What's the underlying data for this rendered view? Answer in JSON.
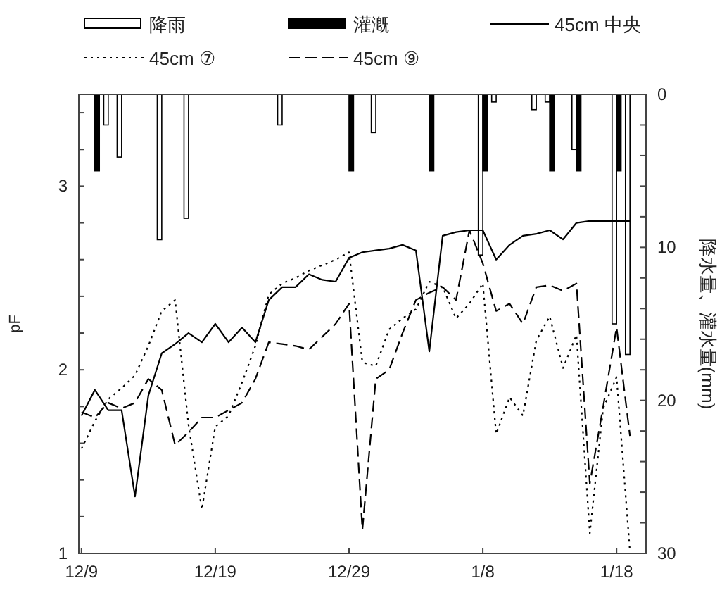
{
  "chart_data": {
    "type": "line",
    "ylabel": "pF",
    "y2label": "降水量、灌水量(mm)",
    "categories": [
      "12/9",
      null,
      null,
      null,
      null,
      null,
      null,
      null,
      null,
      null,
      "12/19",
      null,
      null,
      null,
      null,
      null,
      null,
      null,
      null,
      null,
      "12/29",
      null,
      null,
      null,
      null,
      null,
      null,
      null,
      null,
      null,
      "1/8",
      null,
      null,
      null,
      null,
      null,
      null,
      null,
      null,
      null,
      "1/18",
      null
    ],
    "series": [
      {
        "name": "降雨",
        "type": "bar",
        "axis": "y2",
        "color": "#ffffff",
        "values": [
          null,
          null,
          2.0,
          4.1,
          null,
          null,
          9.5,
          null,
          8.1,
          null,
          null,
          null,
          null,
          null,
          null,
          2.0,
          null,
          null,
          null,
          null,
          null,
          null,
          2.5,
          null,
          null,
          null,
          null,
          null,
          null,
          null,
          10.5,
          0.5,
          null,
          null,
          1.0,
          0.5,
          null,
          3.6,
          null,
          null,
          15.0,
          17.0
        ]
      },
      {
        "name": "灌漑",
        "type": "bar",
        "axis": "y2",
        "color": "#000000",
        "values": [
          null,
          5,
          null,
          null,
          null,
          null,
          null,
          null,
          null,
          null,
          null,
          null,
          null,
          null,
          null,
          null,
          null,
          null,
          null,
          null,
          5,
          null,
          null,
          null,
          null,
          null,
          5,
          null,
          null,
          null,
          5,
          null,
          null,
          null,
          null,
          5,
          null,
          5,
          null,
          null,
          5,
          null
        ]
      },
      {
        "name": "45cm 中央",
        "color": "#000000",
        "line_style": "solid",
        "values": [
          1.75,
          1.89,
          1.78,
          1.78,
          1.31,
          1.86,
          2.09,
          2.14,
          2.2,
          2.15,
          2.25,
          2.15,
          2.23,
          2.15,
          2.38,
          2.45,
          2.45,
          2.52,
          2.49,
          2.48,
          2.61,
          2.64,
          2.65,
          2.66,
          2.68,
          2.65,
          2.1,
          2.73,
          2.75,
          2.76,
          2.76,
          2.6,
          2.68,
          2.73,
          2.74,
          2.76,
          2.71,
          2.8,
          2.81,
          2.81,
          2.81,
          2.81
        ]
      },
      {
        "name": "45cm ⑦",
        "color": "#000000",
        "line_style": "dotted",
        "values": [
          1.57,
          1.72,
          1.84,
          1.9,
          1.97,
          2.13,
          2.32,
          2.38,
          1.7,
          1.24,
          1.69,
          1.75,
          1.93,
          2.13,
          2.41,
          2.47,
          2.5,
          2.54,
          2.57,
          2.6,
          2.64,
          2.04,
          2.02,
          2.22,
          2.28,
          2.33,
          2.48,
          2.45,
          2.28,
          2.36,
          2.47,
          1.65,
          1.85,
          1.75,
          2.16,
          2.29,
          2.01,
          2.19,
          1.11,
          1.79,
          1.96,
          1.01
        ]
      },
      {
        "name": "45cm ⑨",
        "color": "#000000",
        "line_style": "dashed",
        "values": [
          1.77,
          1.74,
          1.82,
          1.79,
          1.82,
          1.95,
          1.89,
          1.59,
          1.66,
          1.74,
          1.74,
          1.78,
          1.82,
          1.95,
          2.15,
          2.14,
          2.13,
          2.11,
          2.18,
          2.25,
          2.36,
          1.13,
          1.95,
          2.0,
          2.2,
          2.38,
          2.42,
          2.45,
          2.38,
          2.76,
          2.58,
          2.32,
          2.36,
          2.25,
          2.45,
          2.46,
          2.43,
          2.47,
          1.38,
          1.8,
          2.23,
          1.64
        ]
      }
    ],
    "ylim": [
      1,
      3.5
    ],
    "yticks": [
      1,
      {
        "value": 1.2,
        "label": null
      },
      {
        "value": 1.4,
        "label": null
      },
      {
        "value": 1.6,
        "label": null
      },
      {
        "value": 1.8,
        "label": null
      },
      2,
      {
        "value": 2.2,
        "label": null
      },
      {
        "value": 2.4,
        "label": null
      },
      {
        "value": 2.6,
        "label": null
      },
      {
        "value": 2.8,
        "label": null
      },
      3,
      {
        "value": 3.2,
        "label": null
      },
      {
        "value": 3.4,
        "label": null
      }
    ],
    "y2lim": [
      30,
      0
    ],
    "y2ticks": [
      0,
      {
        "value": 2,
        "label": null
      },
      {
        "value": 4,
        "label": null
      },
      {
        "value": 6,
        "label": null
      },
      {
        "value": 8,
        "label": null
      },
      10,
      {
        "value": 12,
        "label": null
      },
      {
        "value": 14,
        "label": null
      },
      {
        "value": 16,
        "label": null
      },
      {
        "value": 18,
        "label": null
      },
      20,
      {
        "value": 22,
        "label": null
      },
      {
        "value": 24,
        "label": null
      },
      {
        "value": 26,
        "label": null
      },
      {
        "value": 28,
        "label": null
      },
      30
    ],
    "grid": false,
    "legend": "top"
  }
}
